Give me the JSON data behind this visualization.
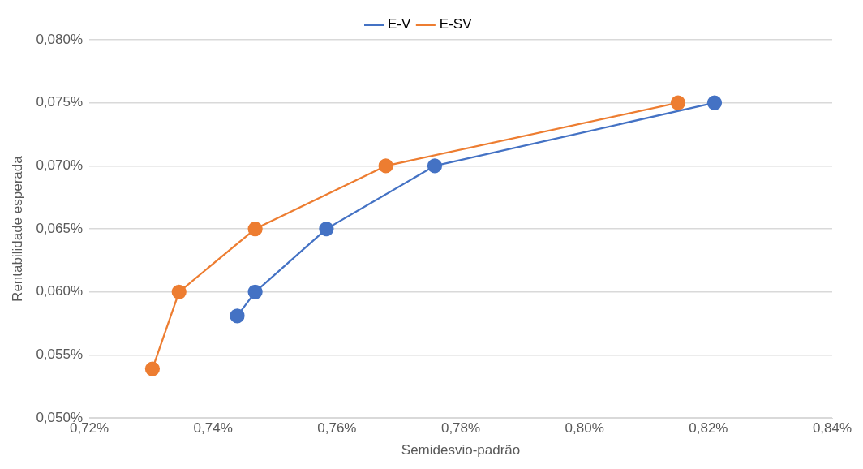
{
  "chart_data": {
    "type": "line",
    "xlabel": "Semidesvio-padrão",
    "ylabel": "Rentabilidade esperada",
    "xlim": [
      0.72,
      0.84
    ],
    "xticks": [
      {
        "value": 0.72,
        "label": "0,72%"
      },
      {
        "value": 0.74,
        "label": "0,74%"
      },
      {
        "value": 0.76,
        "label": "0,76%"
      },
      {
        "value": 0.78,
        "label": "0,78%"
      },
      {
        "value": 0.8,
        "label": "0,80%"
      },
      {
        "value": 0.82,
        "label": "0,82%"
      },
      {
        "value": 0.84,
        "label": "0,84%"
      }
    ],
    "ylim": [
      0.05,
      0.08
    ],
    "yticks": [
      {
        "value": 0.05,
        "label": "0,050%"
      },
      {
        "value": 0.055,
        "label": "0,055%"
      },
      {
        "value": 0.06,
        "label": "0,060%"
      },
      {
        "value": 0.065,
        "label": "0,065%"
      },
      {
        "value": 0.07,
        "label": "0,070%"
      },
      {
        "value": 0.075,
        "label": "0,075%"
      },
      {
        "value": 0.08,
        "label": "0,080%"
      }
    ],
    "grid": "y",
    "legend": "top",
    "marker": "circle",
    "line_style": "solid",
    "series": [
      {
        "name": "E-V",
        "color": "#4472c4",
        "x": [
          0.7439,
          0.7468,
          0.7583,
          0.7758,
          0.821
        ],
        "values": [
          0.0581,
          0.06,
          0.065,
          0.07,
          0.075
        ]
      },
      {
        "name": "E-SV",
        "color": "#ed7d31",
        "x": [
          0.7302,
          0.7345,
          0.7468,
          0.7679,
          0.8151
        ],
        "values": [
          0.0539,
          0.06,
          0.065,
          0.07,
          0.075
        ]
      }
    ]
  }
}
